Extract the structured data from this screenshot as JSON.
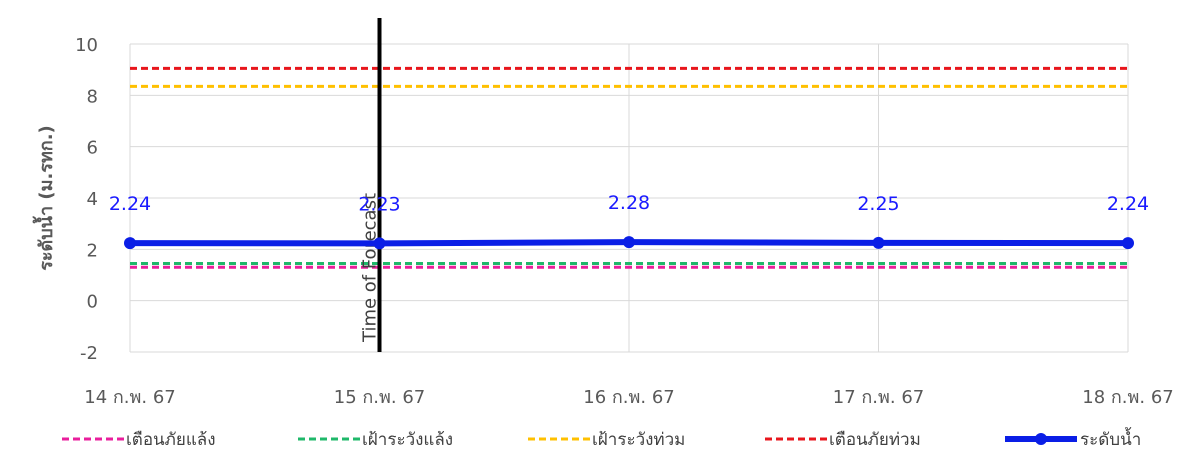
{
  "chart_data": {
    "type": "line",
    "ylabel": "ระดับน้ำ (ม.รทก.)",
    "xlabel": "",
    "categories": [
      "14 ก.พ. 67",
      "15 ก.พ. 67",
      "16 ก.พ. 67",
      "17 ก.พ. 67",
      "18 ก.พ. 67"
    ],
    "ylim": [
      -2,
      10
    ],
    "yticks": [
      -2,
      0,
      2,
      4,
      6,
      8,
      10
    ],
    "grid": true,
    "legend_position": "bottom",
    "series": [
      {
        "name": "เตือนภัยแล้ง",
        "style": "dashed",
        "color": "#e91e9c",
        "values": [
          1.3,
          1.3,
          1.3,
          1.3,
          1.3
        ]
      },
      {
        "name": "เฝ้าระวังแล้ง",
        "style": "dashed",
        "color": "#1fb86a",
        "values": [
          1.45,
          1.45,
          1.45,
          1.45,
          1.45
        ]
      },
      {
        "name": "เฝ้าระวังท่วม",
        "style": "dashed",
        "color": "#ffc000",
        "values": [
          8.35,
          8.35,
          8.35,
          8.35,
          8.35
        ]
      },
      {
        "name": "เตือนภัยท่วม",
        "style": "dashed",
        "color": "#e8161c",
        "values": [
          9.05,
          9.05,
          9.05,
          9.05,
          9.05
        ]
      },
      {
        "name": "ระดับน้ำ",
        "style": "solid-markers",
        "color": "#0a1ee6",
        "values": [
          2.24,
          2.23,
          2.28,
          2.25,
          2.24
        ],
        "labels": [
          "2.24",
          "2.23",
          "2.28",
          "2.25",
          "2.24"
        ]
      }
    ],
    "annotation": {
      "text": "Time of Forecast",
      "category": "15 ก.พ. 67",
      "color": "#000000"
    }
  }
}
